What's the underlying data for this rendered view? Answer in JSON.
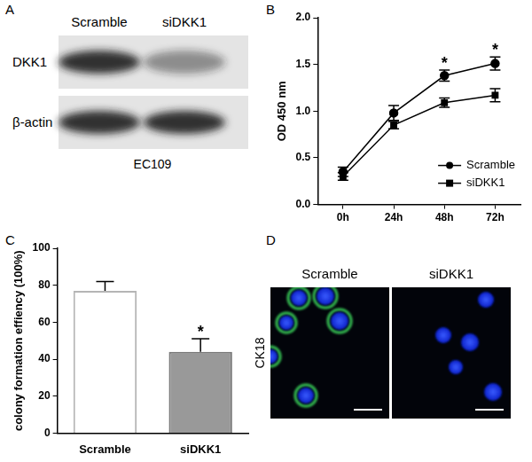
{
  "panel_labels": [
    "A",
    "B",
    "C",
    "D"
  ],
  "blot": {
    "lanes": [
      "Scramble",
      "siDKK1"
    ],
    "rows": [
      {
        "name": "DKK1",
        "intensity": [
          1,
          0.5
        ]
      },
      {
        "name": "β-actin",
        "intensity": [
          1,
          1
        ]
      }
    ],
    "caption": "EC109"
  },
  "chart_data": [
    {
      "type": "line",
      "y_label": "OD 450 nm",
      "categories": [
        "0h",
        "24h",
        "48h",
        "72h"
      ],
      "series": [
        {
          "name": "Scramble",
          "color": "#000000",
          "marker": "circle",
          "values": [
            0.35,
            0.98,
            1.38,
            1.51
          ],
          "errors": [
            0.05,
            0.08,
            0.06,
            0.07
          ]
        },
        {
          "name": "siDKK1",
          "color": "#000000",
          "marker": "square",
          "values": [
            0.3,
            0.85,
            1.09,
            1.17
          ],
          "errors": [
            0.04,
            0.04,
            0.05,
            0.07
          ]
        }
      ],
      "ylim": [
        0,
        2
      ],
      "yticks": [
        {
          "value": 0,
          "label": "0.0"
        },
        {
          "value": 0.5,
          "label": "0.5"
        },
        {
          "value": 1,
          "label": "1.0"
        },
        {
          "value": 1.5,
          "label": "1.5"
        },
        {
          "value": 2,
          "label": "2.0"
        }
      ],
      "grid": false,
      "legend": "lower right",
      "annotations": [
        {
          "text": "*",
          "category": "48h"
        },
        {
          "text": "*",
          "category": "72h"
        }
      ]
    },
    {
      "type": "bar",
      "y_label": "colony formation effiency (100%)",
      "categories": [
        "Scramble",
        "siDKK1"
      ],
      "values": [
        77,
        44
      ],
      "errors": [
        5,
        7
      ],
      "colors": [
        "#ffffff",
        "#999999"
      ],
      "ylim": [
        0,
        100
      ],
      "yticks": [
        0,
        20,
        40,
        60,
        80,
        100
      ],
      "grid": false,
      "annotations": [
        {
          "text": "*",
          "category": "siDKK1"
        }
      ]
    }
  ],
  "micrographs": {
    "row_label": "CK18",
    "images": [
      {
        "label": "Scramble",
        "ck18_signal": true
      },
      {
        "label": "siDKK1",
        "ck18_signal": false
      }
    ]
  }
}
